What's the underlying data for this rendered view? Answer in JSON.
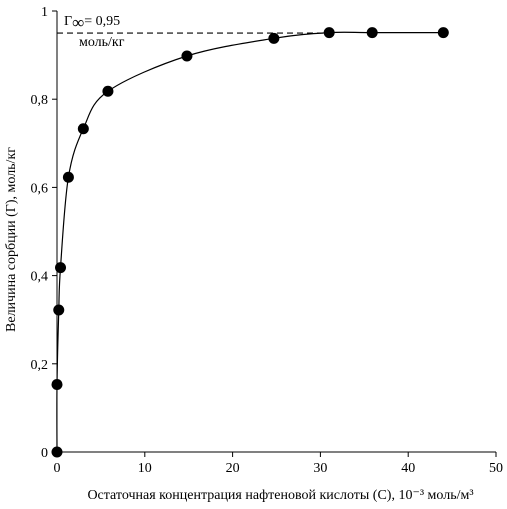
{
  "chart_data": {
    "type": "scatter",
    "title": "",
    "xlabel": "Остаточная концентрация нафтеновой кислоты (С),  10⁻³ моль/м³",
    "ylabel": "Величина сорбции (Г), моль/кг",
    "xlim": [
      0,
      50
    ],
    "ylim": [
      0,
      1
    ],
    "xticks": [
      0,
      10,
      20,
      30,
      40,
      50
    ],
    "yticks": [
      0,
      0.2,
      0.4,
      0.6,
      0.8,
      1
    ],
    "xtick_labels": [
      "0",
      "10",
      "20",
      "30",
      "40",
      "50"
    ],
    "ytick_labels": [
      "0",
      "0,2",
      "0,4",
      "0,6",
      "0,8",
      "1"
    ],
    "grid": false,
    "legend": "none",
    "series": [
      {
        "style": "markers with smooth fitted curve",
        "color": "#000000",
        "x": [
          0,
          0,
          0.2,
          0.4,
          1.3,
          3.0,
          5.8,
          14.8,
          24.7,
          31.0,
          35.9,
          44.0
        ],
        "y": [
          0,
          0.153,
          0.322,
          0.418,
          0.623,
          0.733,
          0.818,
          0.898,
          0.938,
          0.951,
          0.951,
          0.951
        ]
      }
    ],
    "annotations": {
      "limit_line": {
        "y": 0.95,
        "x_start": 0,
        "x_end": 31,
        "style": "dashed"
      },
      "gamma_symbol": "Г",
      "gamma_subscript": "∞",
      "gamma_value": "= 0,95",
      "gamma_unit": "моль/кг"
    }
  }
}
